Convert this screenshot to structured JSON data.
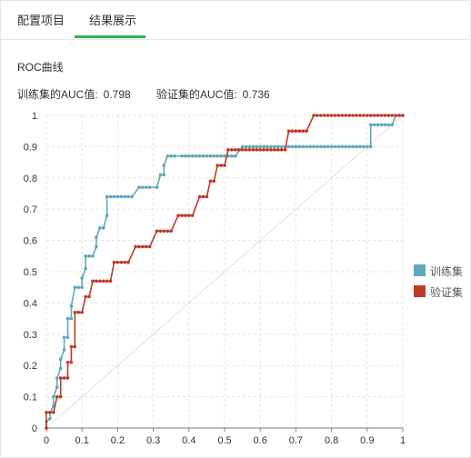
{
  "tabs": [
    {
      "label": "配置项目"
    },
    {
      "label": "结果展示"
    }
  ],
  "section_title": "ROC曲线",
  "auc": {
    "train_label": "训练集的AUC值:",
    "train_value": "0.798",
    "valid_label": "验证集的AUC值:",
    "valid_value": "0.736"
  },
  "chart_data": {
    "type": "line",
    "title": "",
    "xlabel": "",
    "ylabel": "",
    "xlim": [
      0,
      1
    ],
    "ylim": [
      0,
      1
    ],
    "x_ticks": [
      "0",
      "0.1",
      "0.2",
      "0.3",
      "0.4",
      "0.5",
      "0.6",
      "0.7",
      "0.8",
      "0.9",
      "1"
    ],
    "y_ticks": [
      "0",
      "0.1",
      "0.2",
      "0.3",
      "0.4",
      "0.5",
      "0.6",
      "0.7",
      "0.8",
      "0.9",
      "1"
    ],
    "grid": true,
    "legend_position": "right",
    "diagonal": true,
    "series": [
      {
        "name": "训练集",
        "color": "#5fa8b9",
        "points": [
          [
            0,
            0
          ],
          [
            0,
            0.02
          ],
          [
            0.01,
            0.03
          ],
          [
            0.01,
            0.05
          ],
          [
            0.02,
            0.07
          ],
          [
            0.02,
            0.1
          ],
          [
            0.03,
            0.13
          ],
          [
            0.03,
            0.16
          ],
          [
            0.04,
            0.19
          ],
          [
            0.04,
            0.22
          ],
          [
            0.05,
            0.25
          ],
          [
            0.05,
            0.29
          ],
          [
            0.06,
            0.29
          ],
          [
            0.06,
            0.35
          ],
          [
            0.07,
            0.35
          ],
          [
            0.07,
            0.39
          ],
          [
            0.08,
            0.45
          ],
          [
            0.09,
            0.45
          ],
          [
            0.1,
            0.45
          ],
          [
            0.1,
            0.48
          ],
          [
            0.11,
            0.51
          ],
          [
            0.11,
            0.55
          ],
          [
            0.12,
            0.55
          ],
          [
            0.13,
            0.55
          ],
          [
            0.14,
            0.58
          ],
          [
            0.14,
            0.61
          ],
          [
            0.15,
            0.64
          ],
          [
            0.16,
            0.64
          ],
          [
            0.17,
            0.68
          ],
          [
            0.17,
            0.74
          ],
          [
            0.18,
            0.74
          ],
          [
            0.19,
            0.74
          ],
          [
            0.2,
            0.74
          ],
          [
            0.21,
            0.74
          ],
          [
            0.22,
            0.74
          ],
          [
            0.23,
            0.74
          ],
          [
            0.24,
            0.74
          ],
          [
            0.26,
            0.77
          ],
          [
            0.27,
            0.77
          ],
          [
            0.28,
            0.77
          ],
          [
            0.29,
            0.77
          ],
          [
            0.31,
            0.77
          ],
          [
            0.32,
            0.81
          ],
          [
            0.33,
            0.81
          ],
          [
            0.33,
            0.84
          ],
          [
            0.34,
            0.87
          ],
          [
            0.35,
            0.87
          ],
          [
            0.36,
            0.87
          ],
          [
            0.38,
            0.87
          ],
          [
            0.39,
            0.87
          ],
          [
            0.4,
            0.87
          ],
          [
            0.41,
            0.87
          ],
          [
            0.42,
            0.87
          ],
          [
            0.43,
            0.87
          ],
          [
            0.44,
            0.87
          ],
          [
            0.45,
            0.87
          ],
          [
            0.46,
            0.87
          ],
          [
            0.47,
            0.87
          ],
          [
            0.48,
            0.87
          ],
          [
            0.49,
            0.87
          ],
          [
            0.5,
            0.87
          ],
          [
            0.51,
            0.87
          ],
          [
            0.52,
            0.87
          ],
          [
            0.53,
            0.87
          ],
          [
            0.55,
            0.9
          ],
          [
            0.56,
            0.9
          ],
          [
            0.57,
            0.9
          ],
          [
            0.58,
            0.9
          ],
          [
            0.59,
            0.9
          ],
          [
            0.6,
            0.9
          ],
          [
            0.61,
            0.9
          ],
          [
            0.62,
            0.9
          ],
          [
            0.63,
            0.9
          ],
          [
            0.64,
            0.9
          ],
          [
            0.65,
            0.9
          ],
          [
            0.66,
            0.9
          ],
          [
            0.67,
            0.9
          ],
          [
            0.68,
            0.9
          ],
          [
            0.69,
            0.9
          ],
          [
            0.7,
            0.9
          ],
          [
            0.71,
            0.9
          ],
          [
            0.72,
            0.9
          ],
          [
            0.73,
            0.9
          ],
          [
            0.74,
            0.9
          ],
          [
            0.75,
            0.9
          ],
          [
            0.76,
            0.9
          ],
          [
            0.77,
            0.9
          ],
          [
            0.78,
            0.9
          ],
          [
            0.79,
            0.9
          ],
          [
            0.8,
            0.9
          ],
          [
            0.81,
            0.9
          ],
          [
            0.82,
            0.9
          ],
          [
            0.83,
            0.9
          ],
          [
            0.84,
            0.9
          ],
          [
            0.85,
            0.9
          ],
          [
            0.86,
            0.9
          ],
          [
            0.87,
            0.9
          ],
          [
            0.88,
            0.9
          ],
          [
            0.89,
            0.9
          ],
          [
            0.9,
            0.9
          ],
          [
            0.91,
            0.9
          ],
          [
            0.91,
            0.97
          ],
          [
            0.92,
            0.97
          ],
          [
            0.93,
            0.97
          ],
          [
            0.94,
            0.97
          ],
          [
            0.95,
            0.97
          ],
          [
            0.96,
            0.97
          ],
          [
            0.97,
            0.97
          ],
          [
            0.98,
            1
          ],
          [
            0.99,
            1
          ],
          [
            1,
            1
          ]
        ]
      },
      {
        "name": "验证集",
        "color": "#c0392b",
        "points": [
          [
            0,
            0
          ],
          [
            0,
            0.05
          ],
          [
            0.01,
            0.05
          ],
          [
            0.02,
            0.05
          ],
          [
            0.03,
            0.1
          ],
          [
            0.04,
            0.1
          ],
          [
            0.04,
            0.16
          ],
          [
            0.05,
            0.16
          ],
          [
            0.06,
            0.16
          ],
          [
            0.06,
            0.21
          ],
          [
            0.07,
            0.21
          ],
          [
            0.07,
            0.26
          ],
          [
            0.08,
            0.26
          ],
          [
            0.08,
            0.37
          ],
          [
            0.09,
            0.37
          ],
          [
            0.1,
            0.37
          ],
          [
            0.11,
            0.42
          ],
          [
            0.12,
            0.42
          ],
          [
            0.13,
            0.47
          ],
          [
            0.14,
            0.47
          ],
          [
            0.15,
            0.47
          ],
          [
            0.16,
            0.47
          ],
          [
            0.17,
            0.47
          ],
          [
            0.18,
            0.47
          ],
          [
            0.19,
            0.53
          ],
          [
            0.2,
            0.53
          ],
          [
            0.21,
            0.53
          ],
          [
            0.22,
            0.53
          ],
          [
            0.23,
            0.53
          ],
          [
            0.25,
            0.58
          ],
          [
            0.26,
            0.58
          ],
          [
            0.27,
            0.58
          ],
          [
            0.28,
            0.58
          ],
          [
            0.29,
            0.58
          ],
          [
            0.31,
            0.63
          ],
          [
            0.32,
            0.63
          ],
          [
            0.33,
            0.63
          ],
          [
            0.34,
            0.63
          ],
          [
            0.35,
            0.63
          ],
          [
            0.37,
            0.68
          ],
          [
            0.38,
            0.68
          ],
          [
            0.39,
            0.68
          ],
          [
            0.4,
            0.68
          ],
          [
            0.41,
            0.68
          ],
          [
            0.43,
            0.74
          ],
          [
            0.44,
            0.74
          ],
          [
            0.45,
            0.74
          ],
          [
            0.46,
            0.79
          ],
          [
            0.47,
            0.79
          ],
          [
            0.48,
            0.84
          ],
          [
            0.49,
            0.84
          ],
          [
            0.5,
            0.84
          ],
          [
            0.51,
            0.89
          ],
          [
            0.52,
            0.89
          ],
          [
            0.53,
            0.89
          ],
          [
            0.54,
            0.89
          ],
          [
            0.55,
            0.89
          ],
          [
            0.56,
            0.89
          ],
          [
            0.57,
            0.89
          ],
          [
            0.58,
            0.89
          ],
          [
            0.59,
            0.89
          ],
          [
            0.6,
            0.89
          ],
          [
            0.61,
            0.89
          ],
          [
            0.62,
            0.89
          ],
          [
            0.63,
            0.89
          ],
          [
            0.64,
            0.89
          ],
          [
            0.65,
            0.89
          ],
          [
            0.66,
            0.89
          ],
          [
            0.67,
            0.89
          ],
          [
            0.68,
            0.95
          ],
          [
            0.69,
            0.95
          ],
          [
            0.7,
            0.95
          ],
          [
            0.71,
            0.95
          ],
          [
            0.72,
            0.95
          ],
          [
            0.73,
            0.95
          ],
          [
            0.75,
            1
          ],
          [
            0.76,
            1
          ],
          [
            0.77,
            1
          ],
          [
            0.78,
            1
          ],
          [
            0.79,
            1
          ],
          [
            0.8,
            1
          ],
          [
            0.81,
            1
          ],
          [
            0.82,
            1
          ],
          [
            0.83,
            1
          ],
          [
            0.84,
            1
          ],
          [
            0.85,
            1
          ],
          [
            0.86,
            1
          ],
          [
            0.87,
            1
          ],
          [
            0.88,
            1
          ],
          [
            0.89,
            1
          ],
          [
            0.9,
            1
          ],
          [
            0.91,
            1
          ],
          [
            0.92,
            1
          ],
          [
            0.93,
            1
          ],
          [
            0.94,
            1
          ],
          [
            0.95,
            1
          ],
          [
            0.96,
            1
          ],
          [
            0.97,
            1
          ],
          [
            0.98,
            1
          ],
          [
            0.99,
            1
          ],
          [
            1,
            1
          ]
        ]
      }
    ]
  }
}
